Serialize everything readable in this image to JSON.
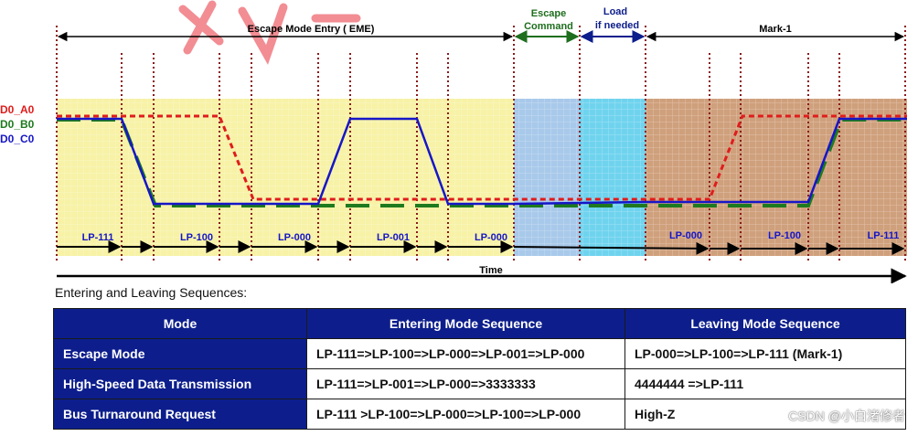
{
  "diagram": {
    "signals": [
      {
        "label": "D0_A0",
        "color": "#e01c1c"
      },
      {
        "label": "D0_B0",
        "color": "#1e7a1e"
      },
      {
        "label": "D0_C0",
        "color": "#1616c8"
      }
    ],
    "spans": {
      "eme": "Escape Mode Entry ( EME)",
      "escape_command": [
        "Escape",
        "Command"
      ],
      "load": [
        "Load",
        "if needed"
      ],
      "mark": "Mark-1"
    },
    "states": [
      "LP-111",
      "LP-100",
      "LP-000",
      "LP-001",
      "LP-000",
      "LP-000",
      "LP-100",
      "LP-111"
    ],
    "time_label": "Time",
    "colors": {
      "eme_region": "#f7f2a6",
      "escape_region": "#a8c9ea",
      "load_region": "#6fd3ee",
      "mark_region": "#cfa07c",
      "escape_arrow": "#1e6e1e",
      "load_arrow": "#0d1e8c",
      "watermark": "#e8303a"
    }
  },
  "table": {
    "title": "Entering and Leaving Sequences:",
    "headers": [
      "Mode",
      "Entering Mode Sequence",
      "Leaving Mode Sequence"
    ],
    "rows": [
      {
        "mode": "Escape Mode",
        "entering": "LP-111=>LP-100=>LP-000=>LP-001=>LP-000",
        "leaving": "LP-000=>LP-100=>LP-111 (Mark-1)"
      },
      {
        "mode": "High-Speed Data Transmission",
        "entering": "LP-111=>LP-001=>LP-000=>3333333",
        "leaving": "4444444 =>LP-111"
      },
      {
        "mode": "Bus Turnaround Request",
        "entering": "LP-111 >LP-100=>LP-000=>LP-100=>LP-000",
        "leaving": "High-Z"
      }
    ]
  },
  "watermark": "CSDN @小白渚修者"
}
